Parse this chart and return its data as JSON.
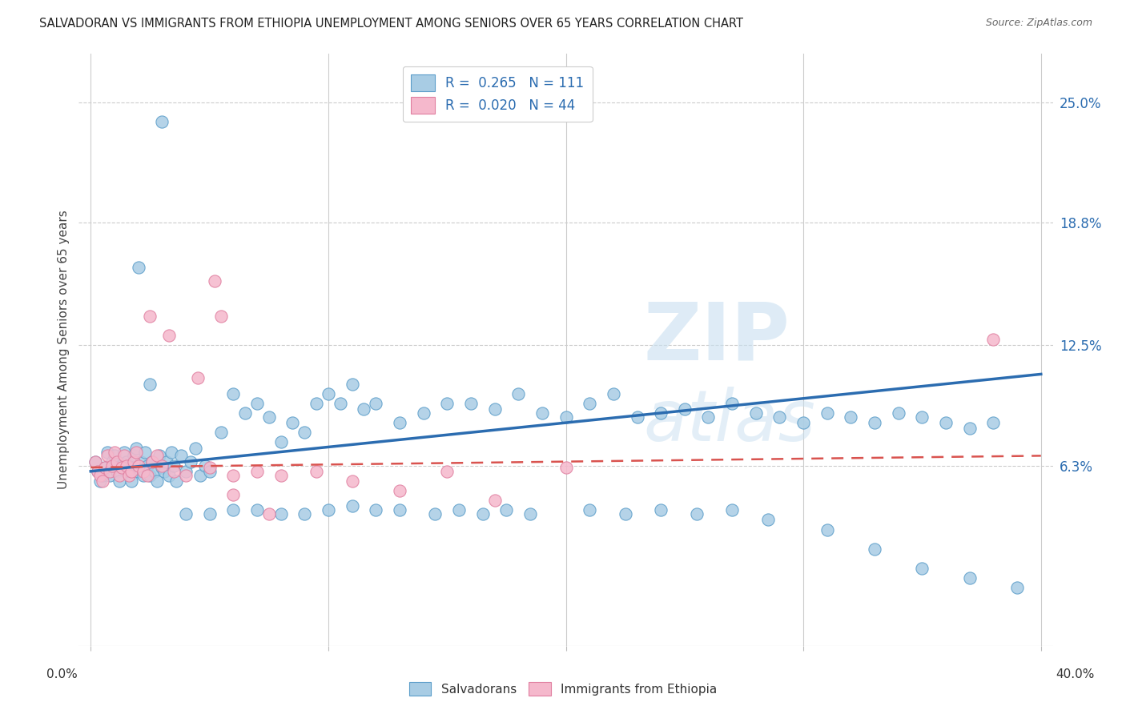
{
  "title": "SALVADORAN VS IMMIGRANTS FROM ETHIOPIA UNEMPLOYMENT AMONG SENIORS OVER 65 YEARS CORRELATION CHART",
  "source": "Source: ZipAtlas.com",
  "ylabel": "Unemployment Among Seniors over 65 years",
  "ytick_labels": [
    "25.0%",
    "18.8%",
    "12.5%",
    "6.3%"
  ],
  "ytick_values": [
    0.25,
    0.188,
    0.125,
    0.063
  ],
  "xlim": [
    0.0,
    0.4
  ],
  "ylim": [
    -0.03,
    0.27
  ],
  "legend_r1": "R =  0.265",
  "legend_n1": "N = 111",
  "legend_r2": "R =  0.020",
  "legend_n2": "N = 44",
  "color_salvadoran_fill": "#a8cce4",
  "color_salvadoran_edge": "#5b9dc9",
  "color_ethiopia_fill": "#f5b8cc",
  "color_ethiopia_edge": "#e07fa0",
  "color_line_salvadoran": "#2b6cb0",
  "color_line_ethiopia": "#d9534f",
  "watermark_zip": "ZIP",
  "watermark_atlas": "atlas",
  "line_salv_x0": 0.0,
  "line_salv_y0": 0.06,
  "line_salv_x1": 0.4,
  "line_salv_y1": 0.11,
  "line_eth_x0": 0.0,
  "line_eth_y0": 0.062,
  "line_eth_x1": 0.4,
  "line_eth_y1": 0.068,
  "salv_x": [
    0.002,
    0.003,
    0.004,
    0.005,
    0.006,
    0.007,
    0.008,
    0.009,
    0.01,
    0.011,
    0.012,
    0.013,
    0.014,
    0.015,
    0.016,
    0.017,
    0.018,
    0.019,
    0.02,
    0.021,
    0.022,
    0.023,
    0.024,
    0.025,
    0.026,
    0.027,
    0.028,
    0.029,
    0.03,
    0.031,
    0.032,
    0.033,
    0.034,
    0.035,
    0.036,
    0.038,
    0.04,
    0.042,
    0.044,
    0.046,
    0.048,
    0.05,
    0.055,
    0.06,
    0.065,
    0.07,
    0.075,
    0.08,
    0.085,
    0.09,
    0.095,
    0.1,
    0.105,
    0.11,
    0.115,
    0.12,
    0.13,
    0.14,
    0.15,
    0.16,
    0.17,
    0.18,
    0.19,
    0.2,
    0.21,
    0.22,
    0.23,
    0.24,
    0.25,
    0.26,
    0.27,
    0.28,
    0.29,
    0.3,
    0.31,
    0.32,
    0.33,
    0.34,
    0.35,
    0.36,
    0.37,
    0.38,
    0.04,
    0.05,
    0.06,
    0.07,
    0.08,
    0.09,
    0.1,
    0.11,
    0.12,
    0.13,
    0.145,
    0.155,
    0.165,
    0.175,
    0.185,
    0.21,
    0.225,
    0.24,
    0.255,
    0.27,
    0.285,
    0.31,
    0.33,
    0.35,
    0.37,
    0.39,
    0.02,
    0.025,
    0.03
  ],
  "salv_y": [
    0.065,
    0.06,
    0.055,
    0.058,
    0.062,
    0.07,
    0.058,
    0.065,
    0.068,
    0.06,
    0.055,
    0.063,
    0.07,
    0.065,
    0.06,
    0.055,
    0.068,
    0.072,
    0.06,
    0.065,
    0.058,
    0.07,
    0.063,
    0.058,
    0.065,
    0.06,
    0.055,
    0.068,
    0.062,
    0.06,
    0.065,
    0.058,
    0.07,
    0.063,
    0.055,
    0.068,
    0.06,
    0.065,
    0.072,
    0.058,
    0.063,
    0.06,
    0.08,
    0.1,
    0.09,
    0.095,
    0.088,
    0.075,
    0.085,
    0.08,
    0.095,
    0.1,
    0.095,
    0.105,
    0.092,
    0.095,
    0.085,
    0.09,
    0.095,
    0.095,
    0.092,
    0.1,
    0.09,
    0.088,
    0.095,
    0.1,
    0.088,
    0.09,
    0.092,
    0.088,
    0.095,
    0.09,
    0.088,
    0.085,
    0.09,
    0.088,
    0.085,
    0.09,
    0.088,
    0.085,
    0.082,
    0.085,
    0.038,
    0.038,
    0.04,
    0.04,
    0.038,
    0.038,
    0.04,
    0.042,
    0.04,
    0.04,
    0.038,
    0.04,
    0.038,
    0.04,
    0.038,
    0.04,
    0.038,
    0.04,
    0.038,
    0.04,
    0.035,
    0.03,
    0.02,
    0.01,
    0.005,
    0.0,
    0.165,
    0.105,
    0.24
  ],
  "eth_x": [
    0.002,
    0.003,
    0.004,
    0.005,
    0.006,
    0.007,
    0.008,
    0.009,
    0.01,
    0.011,
    0.012,
    0.013,
    0.014,
    0.015,
    0.016,
    0.017,
    0.018,
    0.019,
    0.02,
    0.022,
    0.024,
    0.026,
    0.028,
    0.03,
    0.035,
    0.04,
    0.05,
    0.06,
    0.07,
    0.08,
    0.095,
    0.11,
    0.13,
    0.15,
    0.17,
    0.2,
    0.38,
    0.052,
    0.055,
    0.025,
    0.033,
    0.045,
    0.06,
    0.075
  ],
  "eth_y": [
    0.065,
    0.06,
    0.058,
    0.055,
    0.062,
    0.068,
    0.06,
    0.063,
    0.07,
    0.065,
    0.058,
    0.062,
    0.068,
    0.063,
    0.058,
    0.06,
    0.065,
    0.07,
    0.063,
    0.06,
    0.058,
    0.065,
    0.068,
    0.063,
    0.06,
    0.058,
    0.062,
    0.058,
    0.06,
    0.058,
    0.06,
    0.055,
    0.05,
    0.06,
    0.045,
    0.062,
    0.128,
    0.158,
    0.14,
    0.14,
    0.13,
    0.108,
    0.048,
    0.038
  ]
}
